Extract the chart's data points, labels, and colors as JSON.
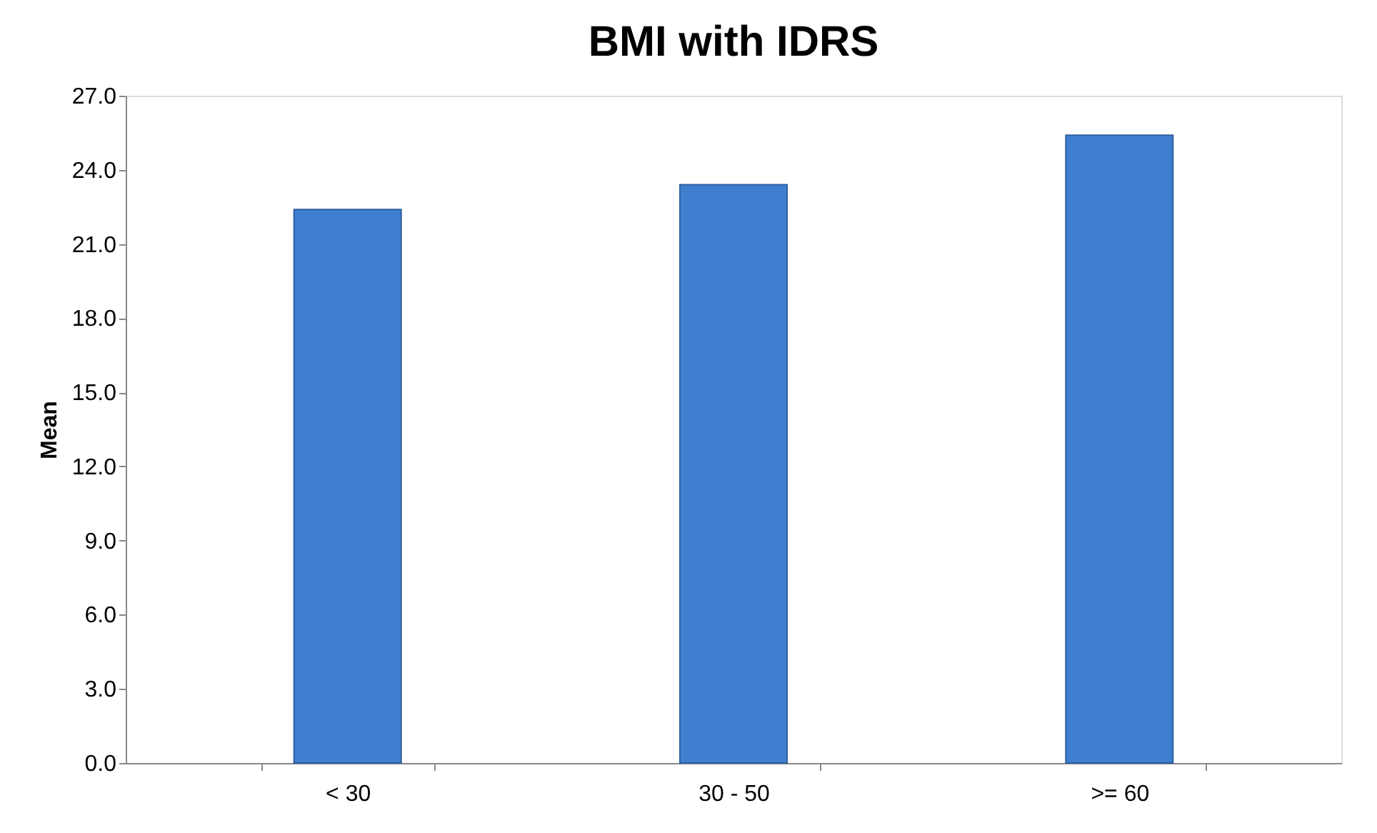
{
  "chart_data": {
    "type": "bar",
    "title": "BMI with IDRS",
    "ylabel": "Mean",
    "categories": [
      "< 30",
      "30 - 50",
      ">= 60"
    ],
    "values": [
      22.4,
      23.4,
      25.4
    ],
    "color": "#3f7fd0",
    "ylim": [
      0,
      27
    ],
    "yticks": [
      {
        "value": 0,
        "label": "0.0"
      },
      {
        "value": 3,
        "label": "3.0"
      },
      {
        "value": 6,
        "label": "6.0"
      },
      {
        "value": 9,
        "label": "9.0"
      },
      {
        "value": 12,
        "label": "12.0"
      },
      {
        "value": 15,
        "label": "15.0"
      },
      {
        "value": 18,
        "label": "18.0"
      },
      {
        "value": 21,
        "label": "21.0"
      },
      {
        "value": 24,
        "label": "24.0"
      },
      {
        "value": 27,
        "label": "27.0"
      }
    ],
    "grid": false
  }
}
